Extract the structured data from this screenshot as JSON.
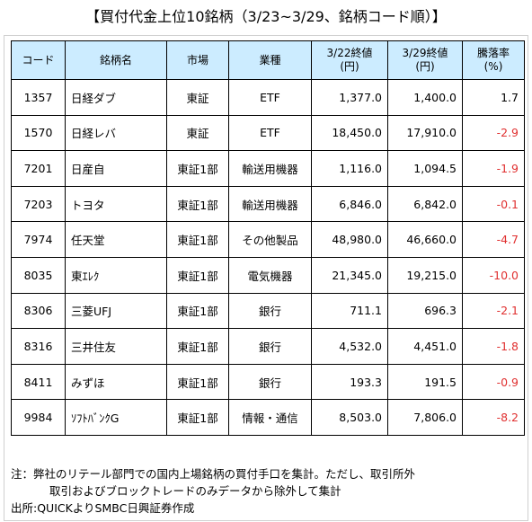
{
  "title": "【買付代金上位10銘柄（3/23~3/29、銘柄コード順）】",
  "headers": [
    "コード",
    "銘柄名",
    "市場",
    "業種",
    "3/22終値\n(円)",
    "3/29終値\n(円)",
    "騰落率\n(%)"
  ],
  "rows": [
    {
      "code": "1357",
      "name": "日経ダブ",
      "market": "東証",
      "sector": "ETF",
      "close_0322": "1,377.0",
      "close_0329": "1,400.0",
      "change": "1.7"
    },
    {
      "code": "1570",
      "name": "日経レバ",
      "market": "東証",
      "sector": "ETF",
      "close_0322": "18,450.0",
      "close_0329": "17,910.0",
      "change": "-2.9"
    },
    {
      "code": "7201",
      "name": "日産自",
      "market": "東証1部",
      "sector": "輸送用機器",
      "close_0322": "1,116.0",
      "close_0329": "1,094.5",
      "change": "-1.9"
    },
    {
      "code": "7203",
      "name": "トヨタ",
      "market": "東証1部",
      "sector": "輸送用機器",
      "close_0322": "6,846.0",
      "close_0329": "6,842.0",
      "change": "-0.1"
    },
    {
      "code": "7974",
      "name": "任天堂",
      "market": "東証1部",
      "sector": "その他製品",
      "close_0322": "48,980.0",
      "close_0329": "46,660.0",
      "change": "-4.7"
    },
    {
      "code": "8035",
      "name": "東ｴﾚｸ",
      "market": "東証1部",
      "sector": "電気機器",
      "close_0322": "21,345.0",
      "close_0329": "19,215.0",
      "change": "-10.0"
    },
    {
      "code": "8306",
      "name": "三菱UFJ",
      "market": "東証1部",
      "sector": "銀行",
      "close_0322": "711.1",
      "close_0329": "696.3",
      "change": "-2.1"
    },
    {
      "code": "8316",
      "name": "三井住友",
      "market": "東証1部",
      "sector": "銀行",
      "close_0322": "4,532.0",
      "close_0329": "4,451.0",
      "change": "-1.8"
    },
    {
      "code": "8411",
      "name": "みずほ",
      "market": "東証1部",
      "sector": "銀行",
      "close_0322": "193.3",
      "close_0329": "191.5",
      "change": "-0.9"
    },
    {
      "code": "9984",
      "name": "ｿﾌﾄﾊﾞﾝｸG",
      "market": "東証1部",
      "sector": "情報・通信",
      "close_0322": "8,503.0",
      "close_0329": "7,806.0",
      "change": "-8.2"
    }
  ],
  "notes": {
    "line1": "注：弊社のリテール部門での国内上場銘柄の買付手口を集計。ただし、取引所外",
    "line2": "取引およびブロックトレードのみデータから除外して集計",
    "line3": "出所:QUICKよりSMBC日興証券作成"
  },
  "colors": {
    "header_bg": "#ccecff",
    "negative": "#e03030"
  }
}
